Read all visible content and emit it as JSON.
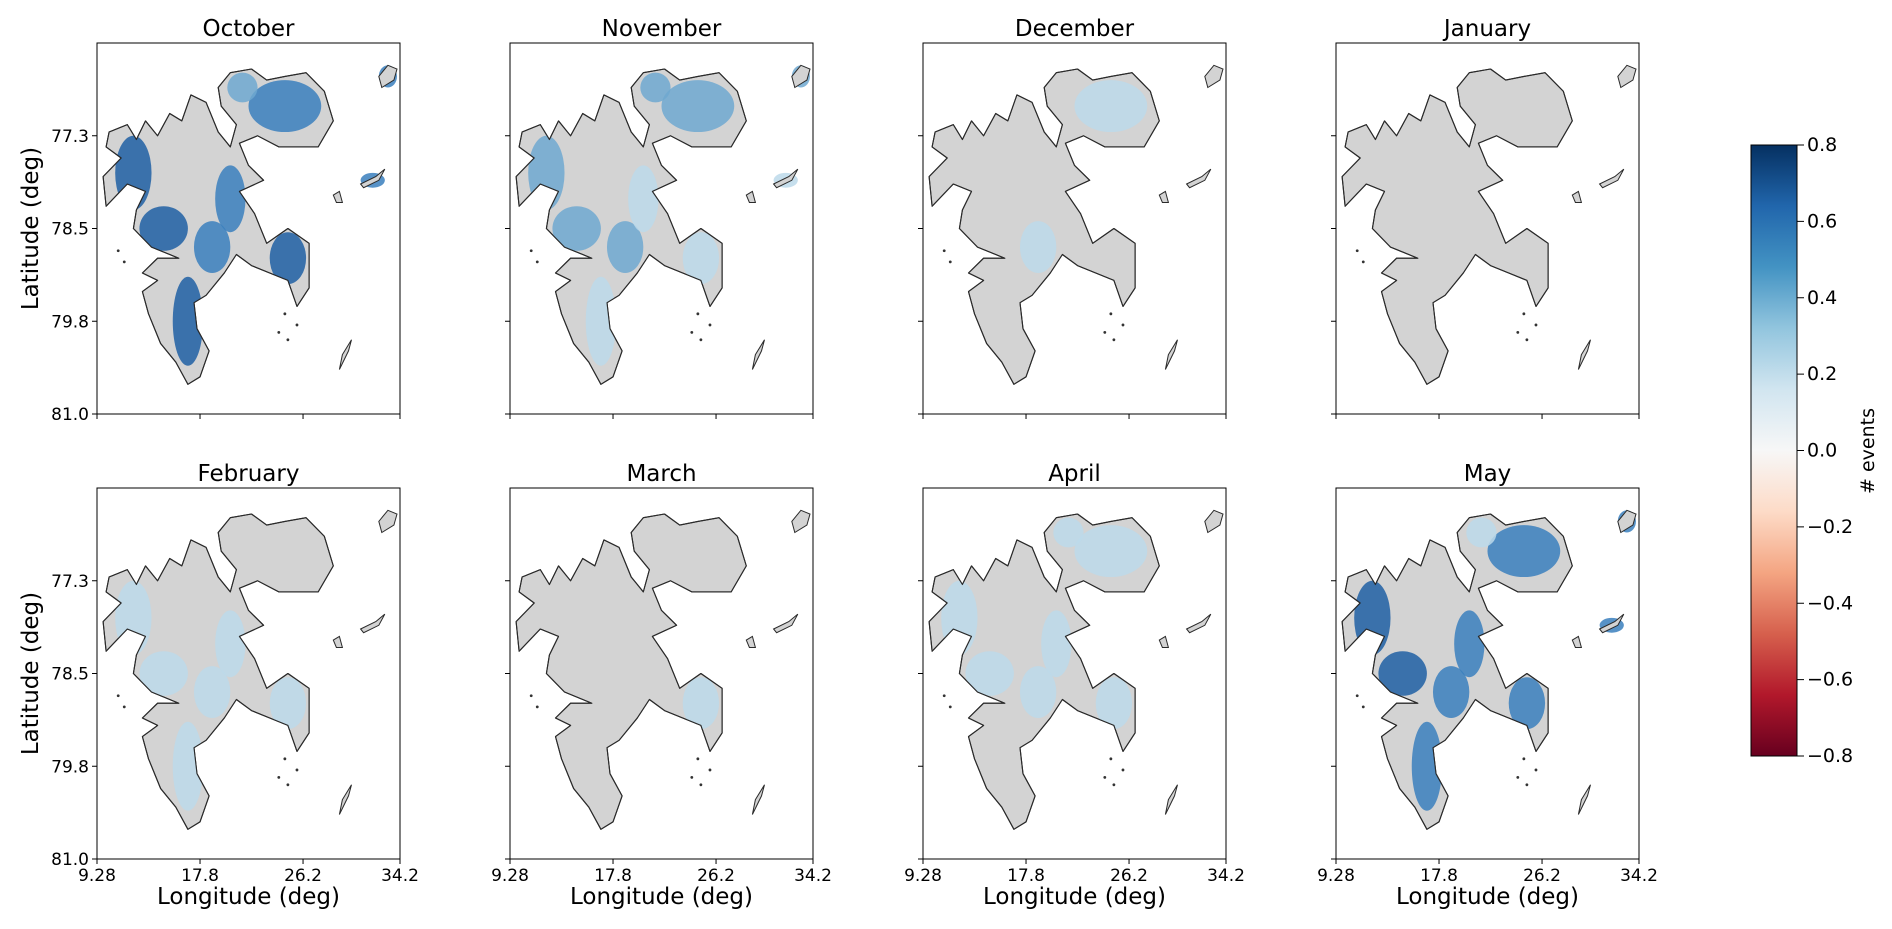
{
  "figure": {
    "panels": [
      {
        "title": "October",
        "intensity": 0.85
      },
      {
        "title": "November",
        "intensity": 0.45
      },
      {
        "title": "December",
        "intensity": 0.08
      },
      {
        "title": "January",
        "intensity": 0.03
      },
      {
        "title": "February",
        "intensity": 0.25
      },
      {
        "title": "March",
        "intensity": 0.08
      },
      {
        "title": "April",
        "intensity": 0.14
      },
      {
        "title": "May",
        "intensity": 0.8
      }
    ],
    "y_axis": {
      "label": "Latitude (deg)",
      "ticks": [
        "77.3",
        "78.5",
        "79.8",
        "81.0"
      ]
    },
    "x_axis": {
      "label": "Longitude (deg)",
      "ticks": [
        "9.28",
        "17.8",
        "26.2",
        "34.2"
      ]
    },
    "colorbar": {
      "label": "# events",
      "ticks": [
        "0.8",
        "0.6",
        "0.4",
        "0.2",
        "0.0",
        "−0.2",
        "−0.4",
        "−0.6",
        "−0.8"
      ],
      "range": [
        -0.8,
        0.8
      ],
      "colormap": "RdBu",
      "colors": [
        "#67001f",
        "#b2182b",
        "#d6604d",
        "#f4a582",
        "#fddbc7",
        "#f7f7f7",
        "#d1e5f0",
        "#92c5de",
        "#4393c3",
        "#2166ac",
        "#053061"
      ]
    },
    "land_color": "#d3d3d3",
    "outline_color": "#2a2a2a"
  }
}
